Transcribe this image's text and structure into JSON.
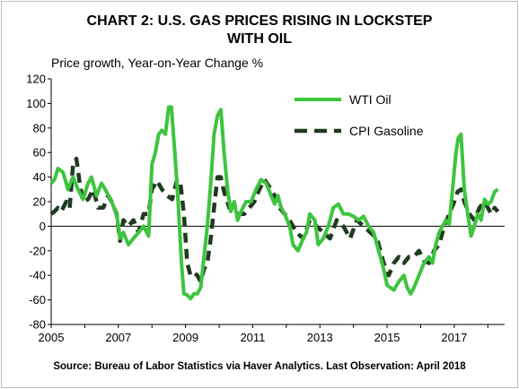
{
  "title_line1": "CHART 2: U.S. GAS PRICES RISING IN LOCKSTEP",
  "title_line2": "WITH OIL",
  "source": "Source: Bureau of Labor Statistics via Haver Analytics. Last Observation: April 2018",
  "colors": {
    "wti": "#3ec43e",
    "cpi": "#1f3a1f"
  },
  "chart_data": {
    "type": "line",
    "title": "CHART 2: U.S. GAS PRICES RISING IN LOCKSTEP WITH OIL",
    "ylabel": "Price growth, Year-on-Year Change %",
    "xlabel": "",
    "ylim": [
      -80,
      120
    ],
    "xlim": [
      2005,
      2018.5
    ],
    "y_ticks": [
      "120",
      "100",
      "80",
      "60",
      "40",
      "20",
      "0",
      "-20",
      "-40",
      "-60",
      "-80"
    ],
    "x_ticks": [
      "2005",
      "2007",
      "2009",
      "2011",
      "2013",
      "2015",
      "2017"
    ],
    "legend_position": "top-right",
    "series": [
      {
        "name": "WTI Oil",
        "style": "solid",
        "points": [
          [
            2005.0,
            35
          ],
          [
            2005.1,
            38
          ],
          [
            2005.2,
            47
          ],
          [
            2005.35,
            44
          ],
          [
            2005.5,
            30
          ],
          [
            2005.65,
            40
          ],
          [
            2005.8,
            30
          ],
          [
            2005.95,
            22
          ],
          [
            2006.1,
            35
          ],
          [
            2006.2,
            40
          ],
          [
            2006.35,
            25
          ],
          [
            2006.5,
            35
          ],
          [
            2006.65,
            28
          ],
          [
            2006.8,
            20
          ],
          [
            2006.95,
            10
          ],
          [
            2007.05,
            -10
          ],
          [
            2007.15,
            -5
          ],
          [
            2007.3,
            -15
          ],
          [
            2007.45,
            -10
          ],
          [
            2007.6,
            -5
          ],
          [
            2007.75,
            0
          ],
          [
            2007.9,
            -8
          ],
          [
            2008.0,
            50
          ],
          [
            2008.1,
            60
          ],
          [
            2008.2,
            75
          ],
          [
            2008.3,
            78
          ],
          [
            2008.4,
            75
          ],
          [
            2008.5,
            97
          ],
          [
            2008.58,
            97
          ],
          [
            2008.68,
            60
          ],
          [
            2008.78,
            20
          ],
          [
            2008.88,
            -30
          ],
          [
            2008.95,
            -55
          ],
          [
            2009.05,
            -56
          ],
          [
            2009.15,
            -59
          ],
          [
            2009.25,
            -55
          ],
          [
            2009.35,
            -55
          ],
          [
            2009.45,
            -50
          ],
          [
            2009.55,
            -25
          ],
          [
            2009.65,
            0
          ],
          [
            2009.75,
            35
          ],
          [
            2009.85,
            75
          ],
          [
            2009.95,
            90
          ],
          [
            2010.05,
            95
          ],
          [
            2010.15,
            60
          ],
          [
            2010.25,
            30
          ],
          [
            2010.35,
            12
          ],
          [
            2010.45,
            20
          ],
          [
            2010.55,
            5
          ],
          [
            2010.65,
            12
          ],
          [
            2010.8,
            20
          ],
          [
            2010.95,
            20
          ],
          [
            2011.1,
            30
          ],
          [
            2011.25,
            38
          ],
          [
            2011.4,
            35
          ],
          [
            2011.55,
            25
          ],
          [
            2011.65,
            18
          ],
          [
            2011.75,
            25
          ],
          [
            2011.85,
            15
          ],
          [
            2011.95,
            10
          ],
          [
            2012.1,
            0
          ],
          [
            2012.2,
            -15
          ],
          [
            2012.35,
            -20
          ],
          [
            2012.5,
            -10
          ],
          [
            2012.6,
            -5
          ],
          [
            2012.7,
            10
          ],
          [
            2012.85,
            5
          ],
          [
            2012.95,
            -15
          ],
          [
            2013.1,
            -10
          ],
          [
            2013.25,
            0
          ],
          [
            2013.4,
            15
          ],
          [
            2013.55,
            18
          ],
          [
            2013.7,
            10
          ],
          [
            2013.85,
            10
          ],
          [
            2014.0,
            8
          ],
          [
            2014.15,
            5
          ],
          [
            2014.3,
            8
          ],
          [
            2014.45,
            0
          ],
          [
            2014.6,
            -5
          ],
          [
            2014.75,
            -20
          ],
          [
            2014.9,
            -35
          ],
          [
            2015.0,
            -48
          ],
          [
            2015.1,
            -50
          ],
          [
            2015.2,
            -52
          ],
          [
            2015.35,
            -45
          ],
          [
            2015.5,
            -40
          ],
          [
            2015.6,
            -50
          ],
          [
            2015.7,
            -55
          ],
          [
            2015.8,
            -50
          ],
          [
            2015.95,
            -40
          ],
          [
            2016.1,
            -30
          ],
          [
            2016.25,
            -25
          ],
          [
            2016.35,
            -30
          ],
          [
            2016.45,
            -15
          ],
          [
            2016.55,
            -5
          ],
          [
            2016.65,
            0
          ],
          [
            2016.75,
            5
          ],
          [
            2016.85,
            2
          ],
          [
            2016.95,
            30
          ],
          [
            2017.05,
            60
          ],
          [
            2017.12,
            72
          ],
          [
            2017.2,
            75
          ],
          [
            2017.3,
            30
          ],
          [
            2017.4,
            10
          ],
          [
            2017.5,
            -8
          ],
          [
            2017.6,
            0
          ],
          [
            2017.7,
            10
          ],
          [
            2017.8,
            5
          ],
          [
            2017.9,
            22
          ],
          [
            2018.0,
            18
          ],
          [
            2018.1,
            20
          ],
          [
            2018.2,
            28
          ],
          [
            2018.3,
            30
          ]
        ]
      },
      {
        "name": "CPI Gasoline",
        "style": "dashed",
        "points": [
          [
            2005.0,
            10
          ],
          [
            2005.1,
            12
          ],
          [
            2005.2,
            15
          ],
          [
            2005.3,
            12
          ],
          [
            2005.45,
            20
          ],
          [
            2005.55,
            15
          ],
          [
            2005.65,
            50
          ],
          [
            2005.75,
            55
          ],
          [
            2005.85,
            35
          ],
          [
            2005.95,
            20
          ],
          [
            2006.1,
            22
          ],
          [
            2006.25,
            30
          ],
          [
            2006.4,
            15
          ],
          [
            2006.55,
            15
          ],
          [
            2006.7,
            25
          ],
          [
            2006.8,
            20
          ],
          [
            2006.95,
            10
          ],
          [
            2007.05,
            -12
          ],
          [
            2007.15,
            5
          ],
          [
            2007.3,
            0
          ],
          [
            2007.45,
            5
          ],
          [
            2007.6,
            -5
          ],
          [
            2007.75,
            10
          ],
          [
            2007.9,
            10
          ],
          [
            2008.0,
            30
          ],
          [
            2008.15,
            37
          ],
          [
            2008.3,
            30
          ],
          [
            2008.45,
            25
          ],
          [
            2008.6,
            22
          ],
          [
            2008.75,
            38
          ],
          [
            2008.85,
            35
          ],
          [
            2008.95,
            10
          ],
          [
            2009.05,
            -30
          ],
          [
            2009.15,
            -40
          ],
          [
            2009.25,
            -38
          ],
          [
            2009.35,
            -40
          ],
          [
            2009.45,
            -45
          ],
          [
            2009.55,
            -35
          ],
          [
            2009.65,
            -30
          ],
          [
            2009.75,
            -10
          ],
          [
            2009.85,
            15
          ],
          [
            2009.95,
            40
          ],
          [
            2010.05,
            40
          ],
          [
            2010.15,
            28
          ],
          [
            2010.3,
            15
          ],
          [
            2010.45,
            10
          ],
          [
            2010.6,
            10
          ],
          [
            2010.75,
            10
          ],
          [
            2010.9,
            15
          ],
          [
            2011.05,
            20
          ],
          [
            2011.2,
            30
          ],
          [
            2011.35,
            38
          ],
          [
            2011.5,
            32
          ],
          [
            2011.65,
            25
          ],
          [
            2011.8,
            15
          ],
          [
            2011.95,
            10
          ],
          [
            2012.1,
            5
          ],
          [
            2012.3,
            -5
          ],
          [
            2012.5,
            -10
          ],
          [
            2012.7,
            5
          ],
          [
            2012.9,
            0
          ],
          [
            2013.1,
            -5
          ],
          [
            2013.3,
            -10
          ],
          [
            2013.5,
            5
          ],
          [
            2013.7,
            0
          ],
          [
            2013.9,
            -10
          ],
          [
            2014.1,
            5
          ],
          [
            2014.3,
            0
          ],
          [
            2014.5,
            -5
          ],
          [
            2014.7,
            -10
          ],
          [
            2014.9,
            -30
          ],
          [
            2015.05,
            -40
          ],
          [
            2015.2,
            -30
          ],
          [
            2015.35,
            -25
          ],
          [
            2015.5,
            -30
          ],
          [
            2015.65,
            -25
          ],
          [
            2015.8,
            -25
          ],
          [
            2015.95,
            -20
          ],
          [
            2016.1,
            -28
          ],
          [
            2016.25,
            -30
          ],
          [
            2016.4,
            -20
          ],
          [
            2016.55,
            -15
          ],
          [
            2016.7,
            0
          ],
          [
            2016.85,
            10
          ],
          [
            2017.0,
            20
          ],
          [
            2017.1,
            28
          ],
          [
            2017.2,
            30
          ],
          [
            2017.3,
            20
          ],
          [
            2017.45,
            10
          ],
          [
            2017.6,
            5
          ],
          [
            2017.75,
            15
          ],
          [
            2017.9,
            20
          ],
          [
            2018.0,
            15
          ],
          [
            2018.1,
            10
          ],
          [
            2018.2,
            15
          ],
          [
            2018.3,
            12
          ]
        ]
      }
    ]
  }
}
